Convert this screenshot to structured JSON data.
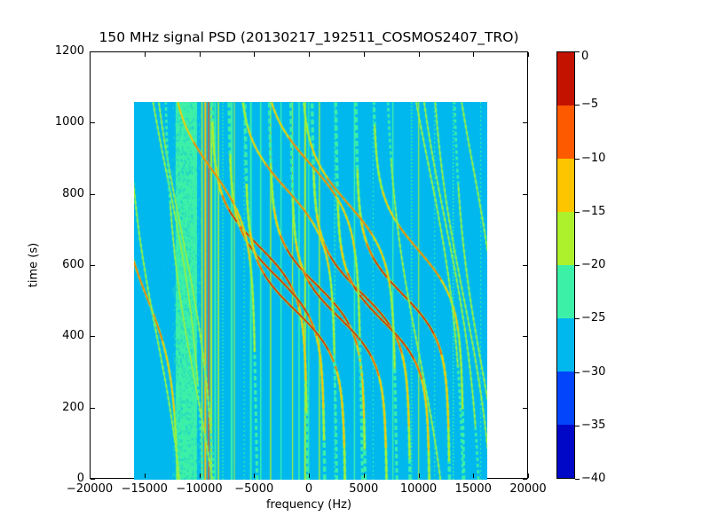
{
  "figure": {
    "title": "150 MHz signal PSD (20130217_192511_COSMOS2407_TRO)",
    "xlabel": "frequency (Hz)",
    "ylabel": "time (s)"
  },
  "chart_data": {
    "type": "heatmap",
    "title": "150 MHz signal PSD (20130217_192511_COSMOS2407_TRO)",
    "xlabel": "frequency (Hz)",
    "ylabel": "time (s)",
    "xlim": [
      -20000,
      20000
    ],
    "ylim": [
      0,
      1200
    ],
    "grid": false,
    "x_ticks": [
      -20000,
      -15000,
      -10000,
      -5000,
      0,
      5000,
      10000,
      15000,
      20000
    ],
    "x_tick_labels": [
      "−20000",
      "−15000",
      "−10000",
      "−5000",
      "0",
      "5000",
      "10000",
      "15000",
      "20000"
    ],
    "y_ticks": [
      0,
      200,
      400,
      600,
      800,
      1000,
      1200
    ],
    "y_tick_labels": [
      "0",
      "200",
      "400",
      "600",
      "800",
      "1000",
      "1200"
    ],
    "data_extent": {
      "freq_hz": [
        -16000,
        16200
      ],
      "time_s": [
        0,
        1060
      ]
    },
    "colorbar": {
      "position": "right",
      "ticks": [
        0,
        -5,
        -10,
        -15,
        -20,
        -25,
        -30,
        -35,
        -40
      ],
      "tick_labels": [
        "0",
        "−5",
        "−10",
        "−15",
        "−20",
        "−25",
        "−30",
        "−35",
        "−40"
      ],
      "segment_colors_top_to_bottom": [
        "#c41200",
        "#fd5a00",
        "#fdc400",
        "#adf12c",
        "#3df0a8",
        "#00b8ee",
        "#0345fa",
        "#0008c8"
      ]
    },
    "palette": {
      "background": "#00b8ee",
      "aqua": "#3df0a8",
      "yg": "#adf12c",
      "amber": "#fdc400",
      "orange": "#fd5a00",
      "red": "#c41200"
    },
    "background_level": {
      "color": "#00b8ee",
      "approx_db": -27
    },
    "rfi_band": {
      "freq_range_hz": [
        -12200,
        -10250
      ],
      "color": "#3df0a8",
      "approx_db": -22,
      "texture": "speckled"
    },
    "vertical_lines": [
      {
        "f": -10450,
        "color": "aqua",
        "w": 2
      },
      {
        "f": -9800,
        "color": "yg",
        "w": 1.5
      },
      {
        "f": -9500,
        "color": "amber",
        "w": 2
      },
      {
        "f": -9200,
        "color": "orange",
        "w": 1.5
      },
      {
        "f": -8950,
        "color": "yg",
        "w": 2
      },
      {
        "f": -8600,
        "color": "aqua",
        "w": 2
      },
      {
        "f": -8300,
        "color": "yg",
        "w": 1.5
      },
      {
        "f": -7900,
        "color": "aqua",
        "w": 1.2,
        "dash": [
          2,
          2
        ]
      },
      {
        "f": -7100,
        "color": "aqua",
        "w": 2.2
      },
      {
        "f": -6850,
        "color": "yg",
        "w": 1
      },
      {
        "f": -5950,
        "color": "aqua",
        "w": 1.2,
        "dash": [
          2,
          3
        ]
      },
      {
        "f": -5350,
        "color": "aqua",
        "w": 2
      },
      {
        "f": -4450,
        "color": "aqua",
        "w": 1.6
      },
      {
        "f": -3550,
        "color": "yg",
        "w": 1.4
      },
      {
        "f": -2600,
        "color": "aqua",
        "w": 1.4
      },
      {
        "f": -1550,
        "color": "yg",
        "w": 1.2
      },
      {
        "f": -950,
        "color": "aqua",
        "w": 1.6
      },
      {
        "f": -400,
        "color": "yg",
        "w": 2
      },
      {
        "f": -80,
        "color": "aqua",
        "w": 1.2
      },
      {
        "f": 900,
        "color": "yg",
        "w": 1.4
      },
      {
        "f": 2300,
        "color": "aqua",
        "w": 1.2,
        "dash": [
          3,
          2
        ]
      },
      {
        "f": 4100,
        "color": "aqua",
        "w": 1.5
      },
      {
        "f": 5800,
        "color": "aqua",
        "w": 1.1,
        "dash": [
          2,
          3
        ]
      },
      {
        "f": 7600,
        "color": "aqua",
        "w": 1.4
      },
      {
        "f": 9300,
        "color": "aqua",
        "w": 1.4,
        "dash": [
          2,
          2
        ]
      },
      {
        "f": 9950,
        "color": "yg",
        "w": 1.1
      },
      {
        "f": 11400,
        "color": "aqua",
        "w": 1.2,
        "dash": [
          2,
          3
        ]
      },
      {
        "f": 13100,
        "color": "aqua",
        "w": 1.4,
        "dash": [
          2,
          2
        ]
      },
      {
        "f": 15600,
        "color": "aqua",
        "w": 1.1,
        "dash": [
          2,
          3
        ]
      }
    ],
    "doppler_traces": [
      {
        "f0": -4600,
        "t0": 655,
        "half_width": 4100,
        "tau": 130,
        "drift": 0.5,
        "intensity": "strong"
      },
      {
        "f0": -3000,
        "t0": 570,
        "half_width": 4100,
        "tau": 128,
        "drift": 0.5,
        "intensity": "strong"
      },
      {
        "f0": -1300,
        "t0": 475,
        "half_width": 4300,
        "tau": 132,
        "drift": 0.5,
        "intensity": "strong"
      },
      {
        "f0": 700,
        "t0": 545,
        "half_width": 4100,
        "tau": 128,
        "drift": 0.5,
        "intensity": "strong"
      },
      {
        "f0": 2700,
        "t0": 455,
        "half_width": 4100,
        "tau": 126,
        "drift": 0.5,
        "intensity": "strong"
      },
      {
        "f0": 4700,
        "t0": 525,
        "half_width": 4200,
        "tau": 130,
        "drift": 0.5,
        "intensity": "strong"
      },
      {
        "f0": 6700,
        "t0": 445,
        "half_width": 4000,
        "tau": 126,
        "drift": 0.5,
        "intensity": "strong"
      },
      {
        "f0": 8500,
        "t0": 520,
        "half_width": 4000,
        "tau": 130,
        "drift": 0.5,
        "intensity": "strong"
      },
      {
        "f0": -2100,
        "t0": 815,
        "half_width": 4100,
        "tau": 145,
        "drift": 0.6,
        "intensity": "medium"
      },
      {
        "f0": 100,
        "t0": 885,
        "half_width": 4200,
        "tau": 150,
        "drift": 0.6,
        "intensity": "medium"
      },
      {
        "f0": 3500,
        "t0": 775,
        "half_width": 4000,
        "tau": 145,
        "drift": 0.6,
        "intensity": "medium"
      },
      {
        "f0": 9900,
        "t0": 645,
        "half_width": 3800,
        "tau": 140,
        "drift": 0.6,
        "intensity": "medium"
      },
      {
        "f0": -14800,
        "t0": 510,
        "half_width": 2400,
        "tau": 200,
        "drift": 0.8,
        "intensity": "medium"
      },
      {
        "f0": -8900,
        "t0": 870,
        "half_width": 3600,
        "tau": 160,
        "drift": 0.6,
        "intensity": "medium"
      },
      {
        "f0": -12900,
        "t0": 840,
        "half_width": 3400,
        "tau": 520,
        "drift": 0,
        "intensity": "weak"
      },
      {
        "f0": -11700,
        "t0": 700,
        "half_width": 3400,
        "tau": 520,
        "drift": 0,
        "intensity": "weak"
      },
      {
        "f0": -13900,
        "t0": 400,
        "half_width": 3000,
        "tau": 480,
        "drift": 0,
        "intensity": "weak"
      },
      {
        "f0": -10300,
        "t0": 250,
        "half_width": 3000,
        "tau": 480,
        "drift": 0,
        "intensity": "weak"
      },
      {
        "f0": 10800,
        "t0": 890,
        "half_width": 3400,
        "tau": 520,
        "drift": 0,
        "intensity": "weak"
      },
      {
        "f0": 12400,
        "t0": 720,
        "half_width": 3400,
        "tau": 520,
        "drift": 0,
        "intensity": "weak"
      },
      {
        "f0": 14000,
        "t0": 520,
        "half_width": 3200,
        "tau": 500,
        "drift": 0,
        "intensity": "weak"
      },
      {
        "f0": 14900,
        "t0": 880,
        "half_width": 3000,
        "tau": 500,
        "drift": 0,
        "intensity": "weak"
      },
      {
        "f0": 10000,
        "t0": 350,
        "half_width": 3200,
        "tau": 500,
        "drift": 0,
        "intensity": "weak"
      },
      {
        "f0": 15800,
        "t0": 300,
        "half_width": 2800,
        "tau": 480,
        "drift": 0,
        "intensity": "weak"
      }
    ]
  },
  "colors": {
    "figure_bg": "#ffffff",
    "frame": "#000000",
    "text": "#000000"
  }
}
